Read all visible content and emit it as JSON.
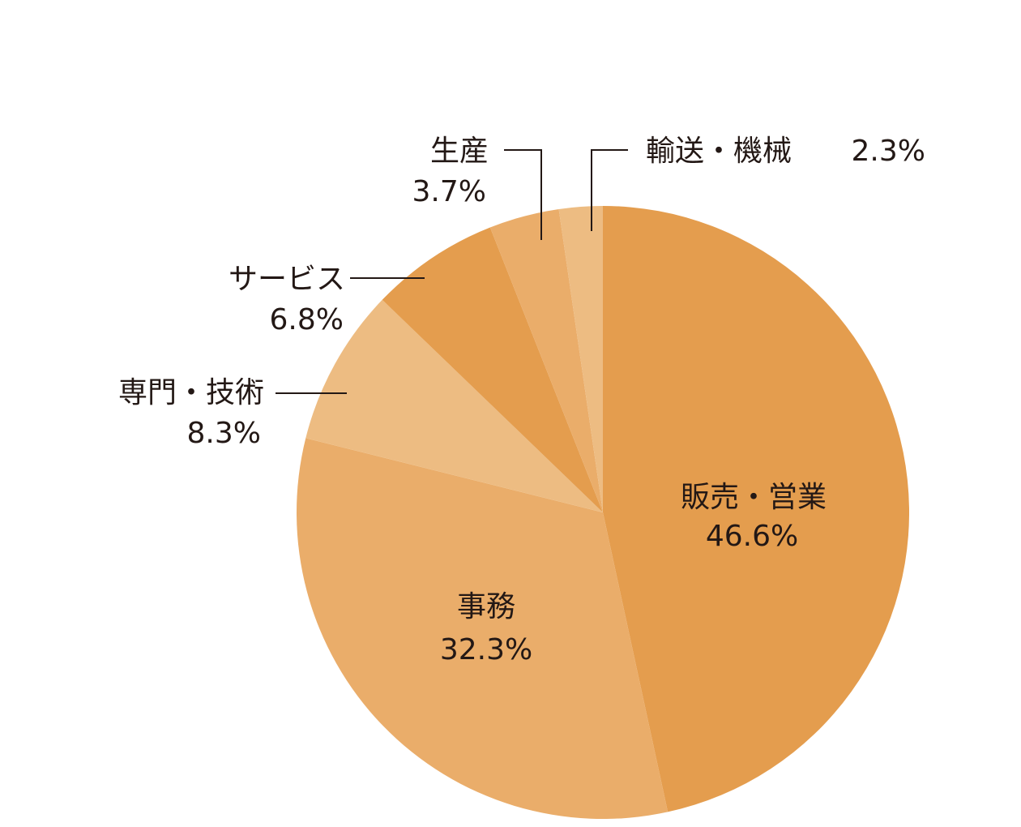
{
  "chart_data": {
    "type": "pie",
    "start_angle_deg": 0,
    "direction": "clockwise",
    "slices": [
      {
        "label": "販売・営業",
        "value": 46.6,
        "value_label": "46.6%",
        "color": "#E49D4E"
      },
      {
        "label": "事務",
        "value": 32.3,
        "value_label": "32.3%",
        "color": "#EAAD6A"
      },
      {
        "label": "専門・技術",
        "value": 8.3,
        "value_label": "8.3%",
        "color": "#EDBC82"
      },
      {
        "label": "サービス",
        "value": 6.8,
        "value_label": "6.8%",
        "color": "#E49D4E"
      },
      {
        "label": "生産",
        "value": 3.7,
        "value_label": "3.7%",
        "color": "#EAAD6A"
      },
      {
        "label": "輸送・機械",
        "value": 2.3,
        "value_label": "2.3%",
        "color": "#EDBC82"
      }
    ]
  }
}
